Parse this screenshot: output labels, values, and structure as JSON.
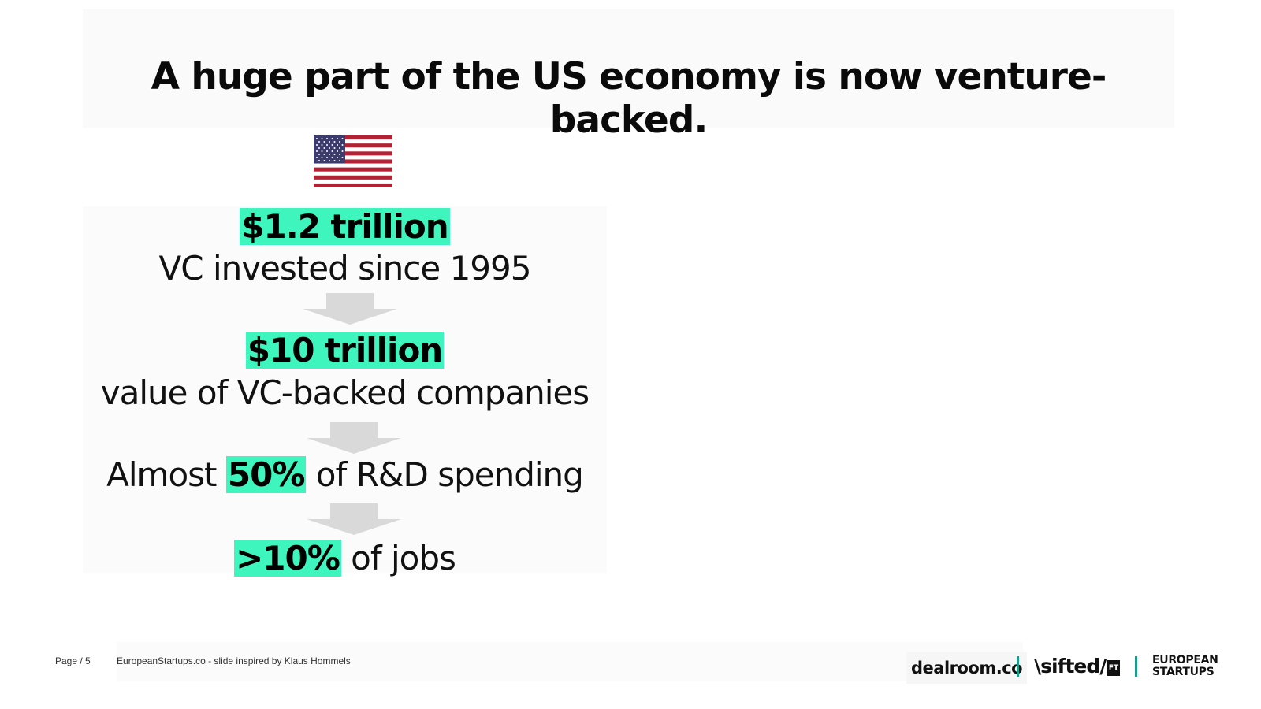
{
  "slide": {
    "title": "A huge part of the US economy is now venture-backed.",
    "flag_icon": "us-flag-icon",
    "accent_color": "#3ef5be",
    "stats": [
      {
        "highlight": "$1.2 trillion",
        "text": "VC invested since 1995"
      },
      {
        "highlight": "$10 trillion",
        "text": "value of VC-backed companies"
      },
      {
        "prefix": "Almost ",
        "highlight": "50%",
        "suffix": " of R&D spending"
      },
      {
        "highlight": ">10%",
        "suffix": " of jobs"
      }
    ]
  },
  "footer": {
    "page": "Page / 5",
    "credit": "EuropeanStartups.co - slide inspired by Klaus Hommels",
    "logos": {
      "dealroom": "dealroom.co",
      "sifted": "\\sifted/",
      "ft": "FT",
      "european_line1": "EUROPEAN",
      "european_line2": "STARTUPS"
    }
  }
}
